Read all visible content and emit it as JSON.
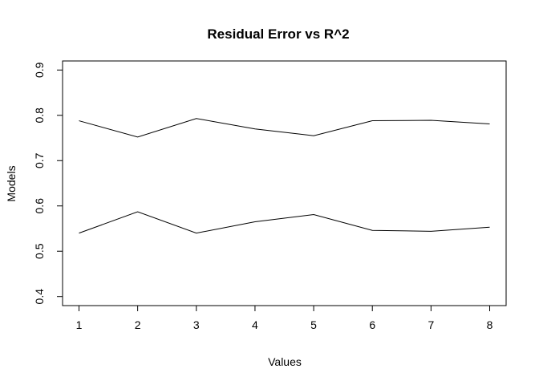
{
  "chart_data": {
    "type": "line",
    "title": "Residual Error vs R^2",
    "xlabel": "Values",
    "ylabel": "Models",
    "x": [
      1,
      2,
      3,
      4,
      5,
      6,
      7,
      8
    ],
    "xticks": [
      "1",
      "2",
      "3",
      "4",
      "5",
      "6",
      "7",
      "8"
    ],
    "yticks": [
      "0.4",
      "0.5",
      "0.6",
      "0.7",
      "0.8",
      "0.9"
    ],
    "ylim": [
      0.38,
      0.92
    ],
    "xlim": [
      0.72,
      8.28
    ],
    "grid": false,
    "series": [
      {
        "values": [
          0.788,
          0.752,
          0.793,
          0.77,
          0.755,
          0.788,
          0.789,
          0.781
        ],
        "color": "#000000"
      },
      {
        "values": [
          0.54,
          0.587,
          0.54,
          0.565,
          0.581,
          0.546,
          0.544,
          0.553
        ],
        "color": "#000000"
      }
    ]
  }
}
